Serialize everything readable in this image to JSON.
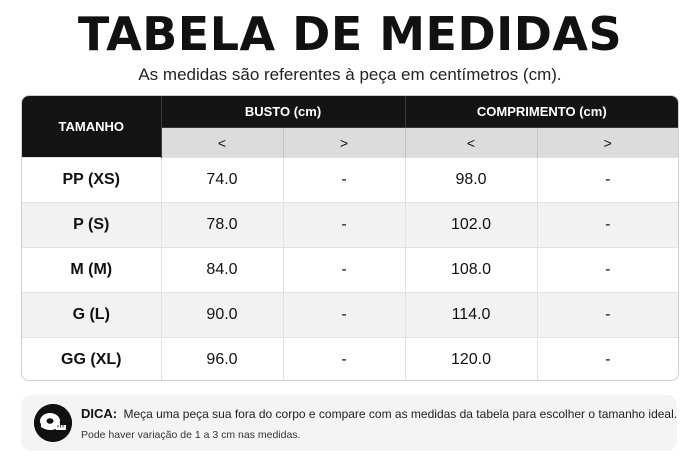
{
  "header": {
    "title": "TABELA DE MEDIDAS",
    "subtitle": "As medidas são referentes à peça em centímetros (cm)."
  },
  "table": {
    "size_header": "TAMANHO",
    "groups": [
      "BUSTO (cm)",
      "COMPRIMENTO (cm)"
    ],
    "subheaders": [
      "<",
      ">",
      "<",
      ">"
    ],
    "rows": [
      {
        "size": "PP (XS)",
        "values": [
          "74.0",
          "-",
          "98.0",
          "-"
        ]
      },
      {
        "size": "P (S)",
        "values": [
          "78.0",
          "-",
          "102.0",
          "-"
        ]
      },
      {
        "size": "M (M)",
        "values": [
          "84.0",
          "-",
          "108.0",
          "-"
        ]
      },
      {
        "size": "G (L)",
        "values": [
          "90.0",
          "-",
          "114.0",
          "-"
        ]
      },
      {
        "size": "GG (XL)",
        "values": [
          "96.0",
          "-",
          "120.0",
          "-"
        ]
      }
    ]
  },
  "tip": {
    "icon": "measuring-tape-icon",
    "label": "DICA:",
    "text": "Meça uma peça sua fora do corpo e compare com as medidas da tabela para escolher o tamanho ideal.",
    "note": "Pode haver variação de 1 a 3 cm nas medidas."
  },
  "colors": {
    "header_bg": "#141414",
    "subheader_bg": "#dcdcdc",
    "alt_row_bg": "#f2f2f2",
    "tip_bg": "#f4f4f4"
  }
}
